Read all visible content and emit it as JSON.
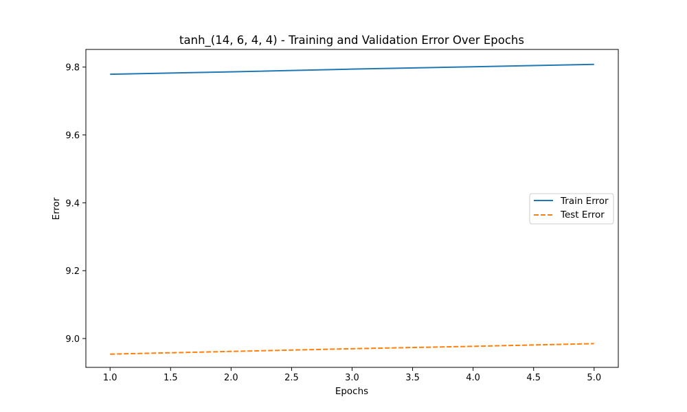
{
  "chart_data": {
    "type": "line",
    "title": "tanh_(14, 6, 4, 4) - Training and Validation Error Over Epochs",
    "xlabel": "Epochs",
    "ylabel": "Error",
    "xlim": [
      0.8,
      5.2
    ],
    "ylim": [
      8.915,
      9.852
    ],
    "x_ticks": [
      1.0,
      1.5,
      2.0,
      2.5,
      3.0,
      3.5,
      4.0,
      4.5,
      5.0
    ],
    "x_tick_labels": [
      "1.0",
      "1.5",
      "2.0",
      "2.5",
      "3.0",
      "3.5",
      "4.0",
      "4.5",
      "5.0"
    ],
    "y_ticks": [
      9.0,
      9.2,
      9.4,
      9.6,
      9.8
    ],
    "y_tick_labels": [
      "9.0",
      "9.2",
      "9.4",
      "9.6",
      "9.8"
    ],
    "grid": false,
    "legend_position": "center-right",
    "x": [
      1,
      2,
      3,
      4,
      5
    ],
    "series": [
      {
        "name": "Train Error",
        "values": [
          9.779,
          9.786,
          9.794,
          9.801,
          9.808
        ],
        "color": "#1f77b4",
        "style": "solid"
      },
      {
        "name": "Test Error",
        "values": [
          8.954,
          8.962,
          8.97,
          8.977,
          8.985
        ],
        "color": "#ff7f0e",
        "style": "dashed"
      }
    ]
  }
}
